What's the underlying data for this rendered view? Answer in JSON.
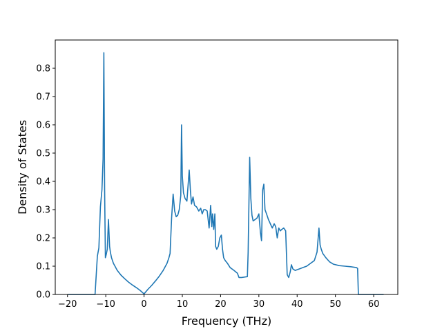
{
  "chart_data": {
    "type": "line",
    "title": "",
    "xlabel": "Frequency (THz)",
    "ylabel": "Density of States",
    "xlim": [
      -23.2,
      66.3
    ],
    "ylim": [
      0.0,
      0.9
    ],
    "xticks": [
      -20,
      -10,
      0,
      10,
      20,
      30,
      40,
      50,
      60
    ],
    "yticks": [
      0.0,
      0.1,
      0.2,
      0.3,
      0.4,
      0.5,
      0.6,
      0.7,
      0.8
    ],
    "grid": false,
    "legend": "none",
    "line_color": "#1f77b4",
    "series": [
      {
        "x": [
          -19.9,
          -12.8,
          -12.2,
          -11.8,
          -11.4,
          -11.0,
          -10.7,
          -10.5,
          -10.3,
          -10.1,
          -9.9,
          -9.6,
          -9.3,
          -9.0,
          -8.8,
          -8.5,
          -8.0,
          -7.0,
          -6.0,
          -5.0,
          -4.0,
          -3.0,
          -2.0,
          -1.0,
          0.0,
          1.0,
          2.0,
          3.0,
          4.0,
          5.0,
          6.0,
          6.5,
          6.8,
          7.2,
          7.6,
          8.0,
          8.4,
          8.8,
          9.2,
          9.6,
          9.8,
          10.0,
          10.3,
          10.7,
          11.2,
          11.8,
          12.1,
          12.4,
          12.8,
          13.2,
          13.7,
          14.3,
          14.8,
          15.2,
          15.6,
          16.0,
          16.5,
          17.0,
          17.4,
          17.7,
          17.9,
          18.2,
          18.5,
          18.7,
          19.0,
          19.4,
          19.8,
          20.2,
          20.5,
          20.8,
          21.2,
          21.8,
          22.5,
          23.5,
          24.4,
          24.8,
          25.5,
          26.5,
          27.0,
          27.2,
          27.6,
          27.9,
          28.2,
          28.5,
          29.0,
          29.5,
          30.0,
          30.4,
          30.7,
          31.0,
          31.3,
          31.6,
          32.0,
          32.5,
          33.0,
          33.5,
          34.0,
          34.4,
          34.8,
          35.2,
          35.6,
          36.0,
          36.5,
          37.0,
          37.4,
          37.8,
          38.2,
          38.5,
          38.9,
          39.5,
          40.5,
          41.5,
          42.5,
          43.5,
          44.5,
          45.2,
          45.7,
          46.0,
          46.3,
          46.7,
          47.5,
          48.5,
          49.5,
          51.0,
          52.5,
          54.0,
          55.5,
          55.8,
          56.0,
          62.6
        ],
        "values": [
          0.0,
          0.0,
          0.135,
          0.165,
          0.31,
          0.37,
          0.48,
          0.855,
          0.37,
          0.13,
          0.14,
          0.16,
          0.265,
          0.17,
          0.15,
          0.13,
          0.11,
          0.085,
          0.068,
          0.055,
          0.043,
          0.033,
          0.024,
          0.014,
          0.002,
          0.018,
          0.032,
          0.048,
          0.065,
          0.085,
          0.11,
          0.13,
          0.145,
          0.27,
          0.355,
          0.295,
          0.275,
          0.28,
          0.3,
          0.35,
          0.6,
          0.42,
          0.36,
          0.34,
          0.33,
          0.44,
          0.37,
          0.32,
          0.345,
          0.315,
          0.31,
          0.295,
          0.305,
          0.285,
          0.3,
          0.3,
          0.295,
          0.235,
          0.315,
          0.24,
          0.285,
          0.23,
          0.285,
          0.17,
          0.16,
          0.17,
          0.2,
          0.21,
          0.16,
          0.13,
          0.12,
          0.11,
          0.095,
          0.085,
          0.075,
          0.06,
          0.06,
          0.062,
          0.063,
          0.15,
          0.485,
          0.34,
          0.28,
          0.26,
          0.265,
          0.27,
          0.285,
          0.22,
          0.19,
          0.37,
          0.39,
          0.3,
          0.285,
          0.265,
          0.25,
          0.235,
          0.25,
          0.24,
          0.2,
          0.235,
          0.225,
          0.23,
          0.235,
          0.225,
          0.07,
          0.06,
          0.08,
          0.105,
          0.09,
          0.085,
          0.09,
          0.095,
          0.1,
          0.11,
          0.12,
          0.15,
          0.235,
          0.175,
          0.16,
          0.145,
          0.13,
          0.115,
          0.107,
          0.102,
          0.1,
          0.098,
          0.095,
          0.092,
          0.0,
          0.0
        ]
      }
    ]
  }
}
